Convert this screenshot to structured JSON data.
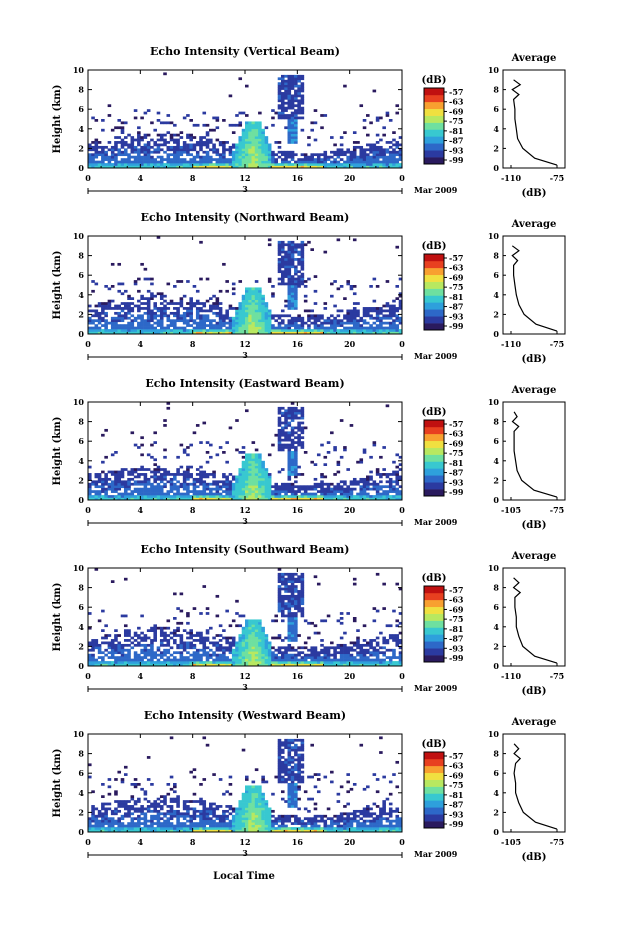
{
  "figure": {
    "xlabel": "Local Time",
    "date_label": "Mar 2009",
    "day_label": "3",
    "cb_unit": "(dB)",
    "avg_title": "Average",
    "avg_xlabel": "(dB)"
  },
  "colors": {
    "scale": [
      "#2a1a5e",
      "#2b3aa0",
      "#2d68c8",
      "#2ea0dc",
      "#38c8d0",
      "#6ee0a0",
      "#b8e860",
      "#f0e040",
      "#f8a030",
      "#e84020",
      "#c01010"
    ]
  },
  "chart_data": [
    {
      "type": "heatmap",
      "title": "Echo Intensity (Vertical Beam)",
      "ylabel": "Height (km)",
      "xlim": [
        0,
        24
      ],
      "ylim": [
        0,
        10
      ],
      "xticks": [
        "0",
        "4",
        "8",
        "12",
        "16",
        "20",
        "0"
      ],
      "yticks": [
        "0",
        "2",
        "4",
        "6",
        "8",
        "10"
      ],
      "colorbar_ticks": [
        "-57",
        "-63",
        "-69",
        "-75",
        "-81",
        "-87",
        "-93",
        "-99"
      ],
      "average": {
        "xticks": [
          "-110",
          "-75"
        ],
        "xlim": [
          -110,
          -75
        ],
        "height_km": [
          0.3,
          1,
          2,
          3,
          4,
          5,
          6,
          7,
          7.5,
          8,
          8.5,
          9
        ],
        "value_db": [
          -75,
          -92,
          -101,
          -105,
          -106,
          -107,
          -107,
          -108,
          -104,
          -109,
          -103,
          -108
        ]
      }
    },
    {
      "type": "heatmap",
      "title": "Echo Intensity (Northward Beam)",
      "ylabel": "Height (km)",
      "xlim": [
        0,
        24
      ],
      "ylim": [
        0,
        10
      ],
      "xticks": [
        "0",
        "4",
        "8",
        "12",
        "16",
        "20",
        "0"
      ],
      "yticks": [
        "0",
        "2",
        "4",
        "6",
        "8",
        "10"
      ],
      "colorbar_ticks": [
        "-57",
        "-63",
        "-69",
        "-75",
        "-81",
        "-87",
        "-93",
        "-99"
      ],
      "average": {
        "xticks": [
          "-110",
          "-75"
        ],
        "xlim": [
          -110,
          -75
        ],
        "height_km": [
          0.3,
          1,
          2,
          3,
          4,
          5,
          6,
          7,
          7.5,
          8,
          8.5,
          9
        ],
        "value_db": [
          -75,
          -91,
          -100,
          -104,
          -106,
          -107,
          -108,
          -108,
          -105,
          -109,
          -104,
          -109
        ]
      }
    },
    {
      "type": "heatmap",
      "title": "Echo Intensity (Eastward Beam)",
      "ylabel": "Height (km)",
      "xlim": [
        0,
        24
      ],
      "ylim": [
        0,
        10
      ],
      "xticks": [
        "0",
        "4",
        "8",
        "12",
        "16",
        "20",
        "0"
      ],
      "yticks": [
        "0",
        "2",
        "4",
        "6",
        "8",
        "10"
      ],
      "colorbar_ticks": [
        "-57",
        "-63",
        "-69",
        "-75",
        "-81",
        "-87",
        "-93",
        "-99"
      ],
      "average": {
        "xticks": [
          "-105",
          "-75"
        ],
        "xlim": [
          -105,
          -75
        ],
        "height_km": [
          0.3,
          1,
          2,
          3,
          4,
          5,
          6,
          7,
          7.5,
          8,
          8.5,
          9
        ],
        "value_db": [
          -75,
          -90,
          -98,
          -101,
          -102,
          -103,
          -103,
          -103,
          -100,
          -104,
          -101,
          -103
        ]
      }
    },
    {
      "type": "heatmap",
      "title": "Echo Intensity (Southward Beam)",
      "ylabel": "Height (km)",
      "xlim": [
        0,
        24
      ],
      "ylim": [
        0,
        10
      ],
      "xticks": [
        "0",
        "4",
        "8",
        "12",
        "16",
        "20",
        "0"
      ],
      "yticks": [
        "0",
        "2",
        "4",
        "6",
        "8",
        "10"
      ],
      "colorbar_ticks": [
        "-57",
        "-63",
        "-69",
        "-75",
        "-81",
        "-87",
        "-93",
        "-99"
      ],
      "average": {
        "xticks": [
          "-110",
          "-75"
        ],
        "xlim": [
          -110,
          -75
        ],
        "height_km": [
          0.3,
          1,
          2,
          3,
          4,
          5,
          6,
          7,
          7.5,
          8,
          8.5,
          9
        ],
        "value_db": [
          -75,
          -92,
          -101,
          -104,
          -106,
          -106,
          -107,
          -107,
          -103,
          -108,
          -104,
          -108
        ]
      }
    },
    {
      "type": "heatmap",
      "title": "Echo Intensity (Westward Beam)",
      "ylabel": "Height (km)",
      "xlim": [
        0,
        24
      ],
      "ylim": [
        0,
        10
      ],
      "xticks": [
        "0",
        "4",
        "8",
        "12",
        "16",
        "20",
        "0"
      ],
      "yticks": [
        "0",
        "2",
        "4",
        "6",
        "8",
        "10"
      ],
      "colorbar_ticks": [
        "-57",
        "-63",
        "-69",
        "-75",
        "-81",
        "-87",
        "-93",
        "-99"
      ],
      "average": {
        "xticks": [
          "-105",
          "-75"
        ],
        "xlim": [
          -105,
          -75
        ],
        "height_km": [
          0.3,
          1,
          2,
          3,
          4,
          5,
          6,
          7,
          7.5,
          8,
          8.5,
          9
        ],
        "value_db": [
          -75,
          -89,
          -97,
          -100,
          -102,
          -102,
          -103,
          -102,
          -99,
          -103,
          -100,
          -103
        ]
      }
    }
  ]
}
